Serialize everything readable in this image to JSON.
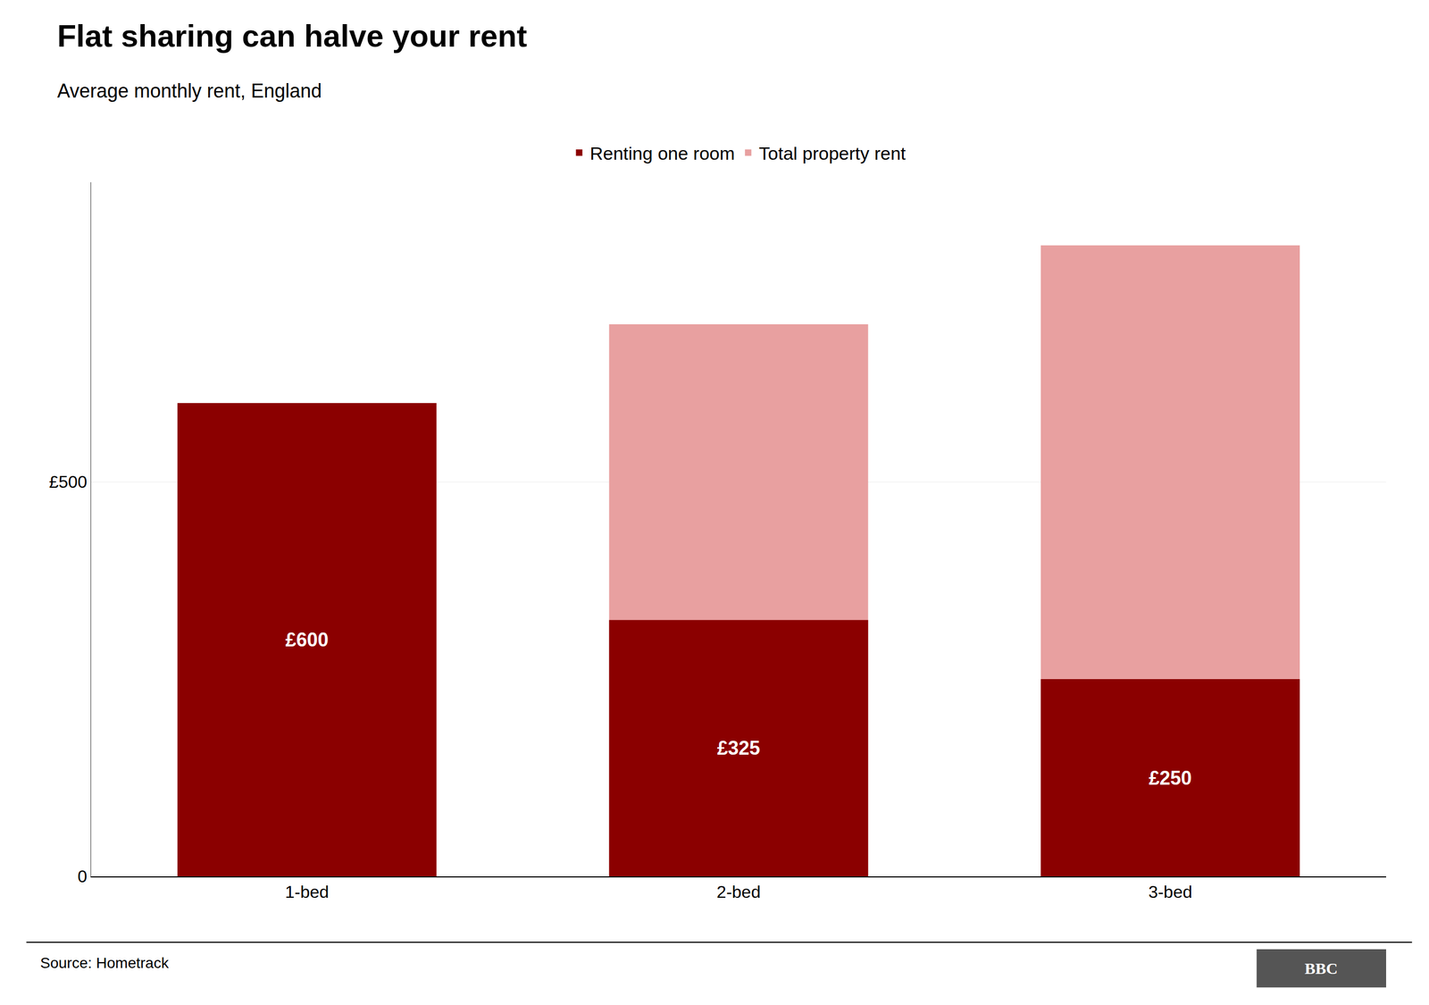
{
  "chart_data": {
    "type": "bar",
    "title": "Flat sharing can halve your rent",
    "subtitle": "Average monthly rent, England",
    "source": "Source: Hometrack",
    "annotations": [
      "BBC"
    ],
    "categories": [
      "1-bed",
      "2-bed",
      "3-bed"
    ],
    "series": [
      {
        "name": "Renting one room",
        "color": "#8B0000",
        "values": [
          600,
          325,
          250
        ],
        "data_labels": true,
        "value_labels": [
          "£600",
          "£325",
          "£250"
        ]
      },
      {
        "name": "Total property rent",
        "color": "#e8a0a0",
        "values": [
          600,
          700,
          800
        ]
      }
    ],
    "ylim": [
      0,
      880
    ],
    "yticks": [
      0,
      {
        "value": 500,
        "label": "£500"
      }
    ],
    "grid": true,
    "legend": "top"
  }
}
